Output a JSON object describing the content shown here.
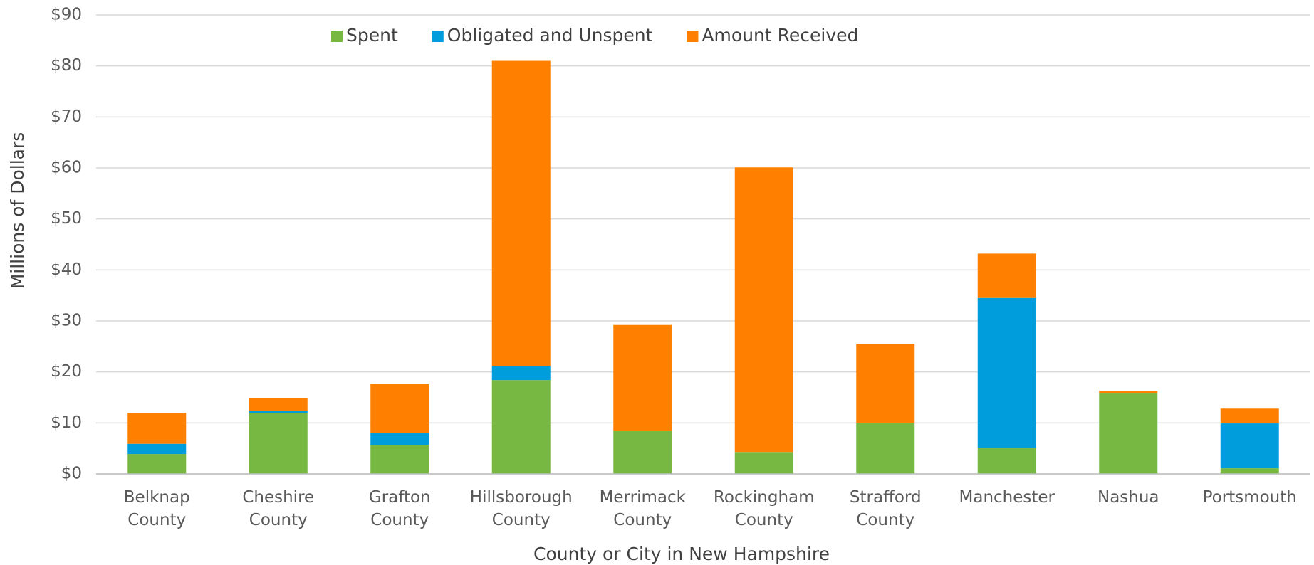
{
  "chart_data": {
    "type": "stacked_bar",
    "y_label": "Millions of Dollars",
    "x_label": "County or City in New Hampshire",
    "categories": [
      "Belknap\nCounty",
      "Cheshire\nCounty",
      "Grafton\nCounty",
      "Hillsborough\nCounty",
      "Merrimack\nCounty",
      "Rockingham\nCounty",
      "Strafford\nCounty",
      "Manchester",
      "Nashua",
      "Portsmouth"
    ],
    "series": [
      {
        "name": "Spent",
        "color": "#77b843",
        "values": [
          3.9,
          12.0,
          5.7,
          18.4,
          8.5,
          4.3,
          10.0,
          5.1,
          15.9,
          1.1
        ]
      },
      {
        "name": "Obligated and Unspent",
        "color": "#009ddd",
        "values": [
          2.0,
          0.3,
          2.3,
          2.8,
          0,
          0,
          0,
          29.4,
          0,
          8.8
        ]
      },
      {
        "name": "Amount Received",
        "color": "#ff8000",
        "values": [
          6.1,
          2.5,
          9.6,
          59.8,
          20.7,
          55.8,
          15.5,
          8.7,
          0.4,
          2.9
        ]
      }
    ],
    "ylim": [
      0,
      90
    ],
    "yticks": [
      {
        "value": 0,
        "label": "$0"
      },
      {
        "value": 10,
        "label": "$10"
      },
      {
        "value": 20,
        "label": "$20"
      },
      {
        "value": 30,
        "label": "$30"
      },
      {
        "value": 40,
        "label": "$40"
      },
      {
        "value": 50,
        "label": "$50"
      },
      {
        "value": 60,
        "label": "$60"
      },
      {
        "value": 70,
        "label": "$70"
      },
      {
        "value": 80,
        "label": "$80"
      },
      {
        "value": 90,
        "label": "$90"
      }
    ],
    "grid": true,
    "legend": "top"
  }
}
